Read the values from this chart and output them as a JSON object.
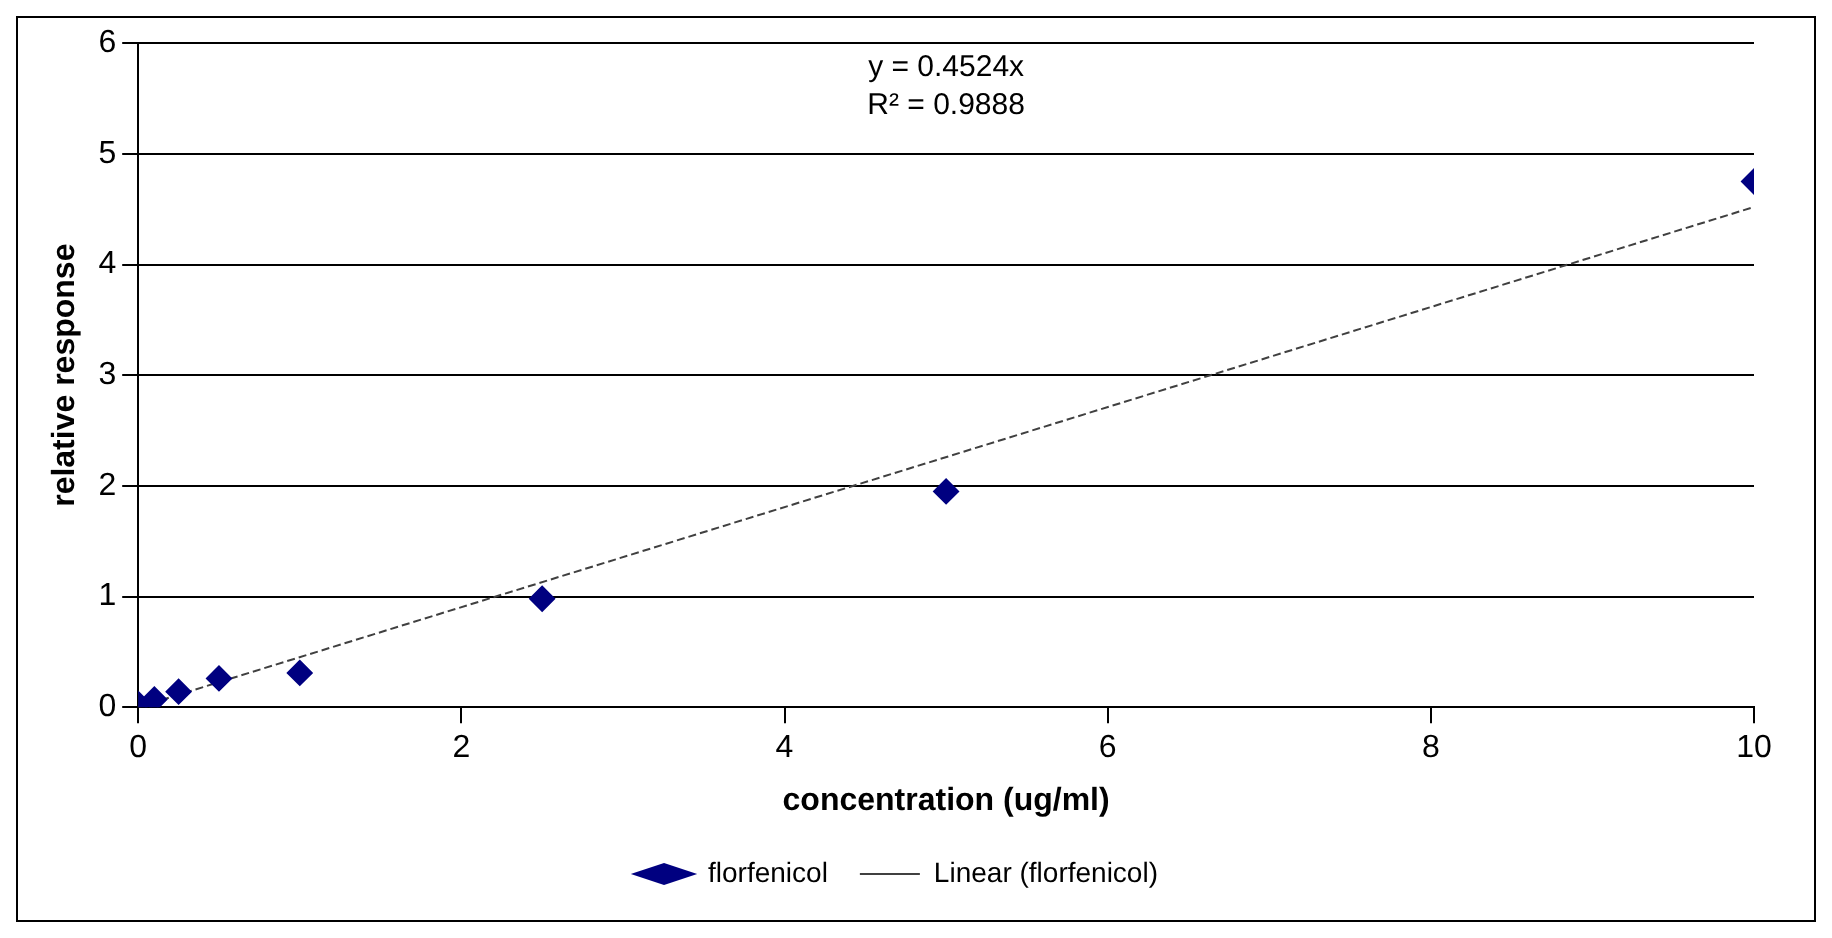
{
  "chart_data": {
    "type": "scatter",
    "xlabel": "concentration (ug/ml)",
    "ylabel": "relative response",
    "annotations": [
      "y = 0.4524x",
      "R² = 0.9888"
    ],
    "series": [
      {
        "name": "florfenicol",
        "color": "#000080",
        "marker": "diamond",
        "x": [
          0,
          0.1,
          0.25,
          0.5,
          1,
          2.5,
          5,
          10
        ],
        "values": [
          0.03,
          0.07,
          0.14,
          0.26,
          0.31,
          0.98,
          1.95,
          4.75
        ]
      },
      {
        "name": "Linear (florfenicol)",
        "type": "line",
        "color": "#404040",
        "line_style": "dashed",
        "marker": "none",
        "x": [
          0,
          10
        ],
        "values": [
          0,
          4.52
        ]
      }
    ],
    "xlim": [
      0,
      10
    ],
    "xticks": [
      0,
      2,
      4,
      6,
      8,
      10
    ],
    "ylim": [
      0,
      6
    ],
    "yticks": [
      0,
      1,
      2,
      3,
      4,
      5,
      6
    ],
    "grid": "y",
    "legend": "bottom"
  }
}
